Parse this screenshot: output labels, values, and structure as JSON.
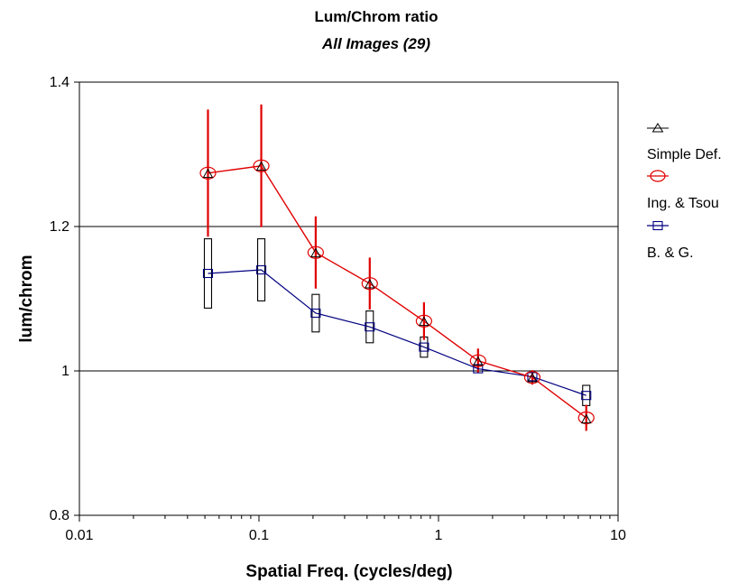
{
  "chart_data": {
    "type": "line",
    "title": "Lum/Chrom ratio",
    "subtitle": "All Images (29)",
    "xlabel": "Spatial Freq. (cycles/deg)",
    "ylabel": "lum/chrom",
    "xscale": "log",
    "xlim": [
      0.01,
      10
    ],
    "ylim": [
      0.8,
      1.4
    ],
    "x_ticks": [
      "0.01",
      "0.1",
      "1",
      "10"
    ],
    "y_ticks": [
      "0.8",
      "1",
      "1.2",
      "1.4"
    ],
    "gridlines_y": [
      1.0,
      1.2
    ],
    "legend_position": "right",
    "x": [
      0.052,
      0.103,
      0.207,
      0.414,
      0.83,
      1.66,
      3.33,
      6.65
    ],
    "series": [
      {
        "name": "Simple Def.",
        "color": "#000000",
        "marker": "triangle",
        "line": false,
        "values": [
          1.273,
          1.283,
          1.163,
          1.12,
          1.068,
          1.013,
          0.99,
          0.933
        ]
      },
      {
        "name": "Ing. & Tsou",
        "color": "#e00000",
        "marker": "circle",
        "line": true,
        "values": [
          1.274,
          1.284,
          1.164,
          1.121,
          1.069,
          1.014,
          0.991,
          0.935
        ],
        "error": [
          0.088,
          0.085,
          0.05,
          0.036,
          0.026,
          0.017,
          0.01,
          0.018
        ],
        "error_style": "line"
      },
      {
        "name": "B. & G.",
        "color": "#000080",
        "marker": "square",
        "line": true,
        "values": [
          1.135,
          1.14,
          1.08,
          1.061,
          1.033,
          1.003,
          0.992,
          0.966
        ],
        "error": [
          0.048,
          0.043,
          0.026,
          0.022,
          0.014,
          0,
          0,
          0.014
        ],
        "error_style": "box"
      }
    ]
  }
}
